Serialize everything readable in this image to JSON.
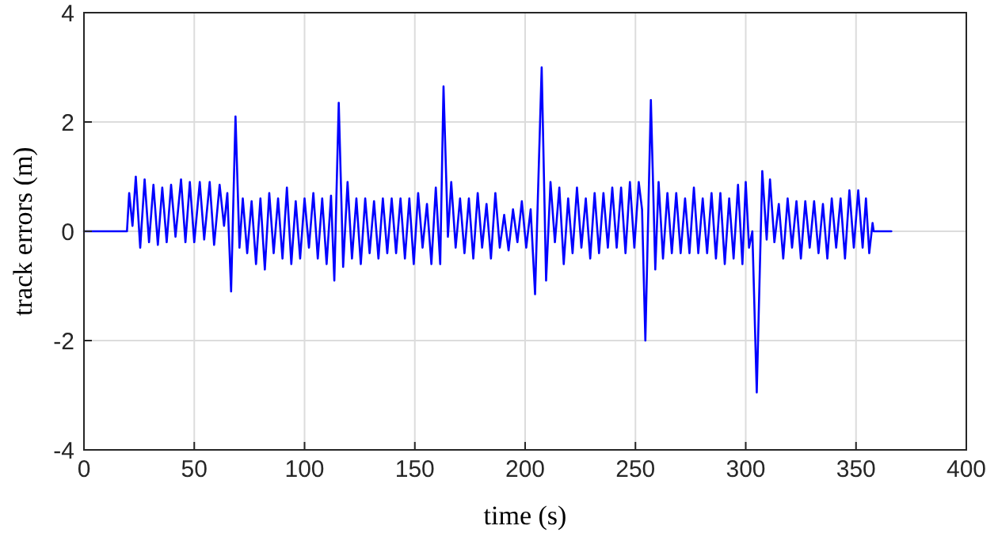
{
  "chart_data": {
    "type": "line",
    "xlabel": "time (s)",
    "ylabel": "track errors (m)",
    "xlim": [
      0,
      400
    ],
    "ylim": [
      -4,
      4
    ],
    "xticks": [
      0,
      50,
      100,
      150,
      200,
      250,
      300,
      350,
      400
    ],
    "yticks": [
      -4,
      -2,
      0,
      2,
      4
    ],
    "grid": true,
    "marker": "none",
    "line_style": "solid",
    "series": [
      {
        "color": "#0000ff",
        "x": [
          0,
          19.5,
          20.5,
          22,
          23.5,
          25.5,
          27.5,
          29.5,
          31.5,
          33.5,
          35.5,
          37.5,
          39.5,
          41.5,
          44,
          46,
          48,
          50,
          52.5,
          54.5,
          57,
          59,
          61.5,
          63.5,
          65,
          66.7,
          68.7,
          70.5,
          72,
          74,
          76,
          78,
          80,
          82,
          84,
          86,
          88,
          90,
          92,
          94,
          96,
          98,
          100,
          102,
          104,
          106,
          108,
          110,
          112,
          113.5,
          115.5,
          117.5,
          119.5,
          121.5,
          123.5,
          125.5,
          127.5,
          129.5,
          131.5,
          133.5,
          135.5,
          137.5,
          139.5,
          141.5,
          143.5,
          145.5,
          147.5,
          149.5,
          151.5,
          153.5,
          155.5,
          157.5,
          159.5,
          161.5,
          163,
          165,
          166.5,
          168.5,
          170.5,
          172.5,
          174.5,
          176.5,
          178.5,
          180.5,
          182.5,
          184.5,
          186.5,
          188.5,
          190.5,
          192.5,
          194.5,
          196.5,
          198.5,
          200.5,
          202.5,
          204.5,
          207.5,
          209.5,
          211.5,
          213.5,
          215.5,
          217.5,
          219.5,
          221.5,
          223.5,
          225.5,
          227.5,
          229.5,
          231.5,
          233.5,
          235.5,
          237.5,
          239.5,
          241.5,
          243.5,
          245.5,
          247.5,
          249.5,
          251.5,
          253,
          254.5,
          257,
          259,
          260.5,
          262.5,
          264.5,
          266.5,
          268.5,
          270.5,
          272.5,
          274.5,
          276.5,
          278.5,
          280.5,
          282.5,
          284.5,
          286.5,
          288.5,
          290.5,
          292.5,
          294.5,
          296.5,
          298.5,
          300,
          301.5,
          303,
          305,
          307.5,
          309.5,
          311,
          313,
          315,
          317,
          319,
          321,
          323,
          325,
          327,
          329,
          331,
          333,
          335,
          337,
          339,
          341,
          343,
          345,
          347,
          349,
          351,
          353,
          354.5,
          356,
          357.5,
          358,
          366
        ],
        "values": [
          0,
          0,
          0.7,
          0.1,
          1.0,
          -0.3,
          0.95,
          -0.2,
          0.85,
          -0.25,
          0.8,
          -0.2,
          0.85,
          -0.1,
          0.95,
          -0.2,
          0.9,
          -0.2,
          0.9,
          -0.15,
          0.9,
          -0.25,
          0.85,
          0.1,
          0.7,
          -1.1,
          2.1,
          -0.3,
          0.6,
          -0.4,
          0.55,
          -0.6,
          0.6,
          -0.7,
          0.7,
          -0.4,
          0.6,
          -0.5,
          0.8,
          -0.6,
          0.55,
          -0.5,
          0.6,
          -0.3,
          0.7,
          -0.5,
          0.6,
          -0.6,
          0.65,
          -0.9,
          2.35,
          -0.65,
          0.9,
          -0.5,
          0.6,
          -0.6,
          0.6,
          -0.4,
          0.55,
          -0.5,
          0.6,
          -0.4,
          0.6,
          -0.4,
          0.6,
          -0.5,
          0.6,
          -0.6,
          0.7,
          -0.3,
          0.5,
          -0.6,
          0.8,
          -0.6,
          2.65,
          -0.1,
          0.9,
          -0.3,
          0.6,
          -0.4,
          0.6,
          -0.5,
          0.7,
          -0.3,
          0.5,
          -0.5,
          0.7,
          -0.3,
          0.3,
          -0.35,
          0.4,
          -0.2,
          0.55,
          -0.3,
          0.4,
          -1.15,
          3.0,
          -0.9,
          0.9,
          -0.2,
          0.8,
          -0.6,
          0.6,
          -0.4,
          0.8,
          -0.3,
          0.6,
          -0.5,
          0.7,
          -0.4,
          0.7,
          -0.3,
          0.8,
          -0.3,
          0.8,
          -0.4,
          0.9,
          -0.3,
          0.9,
          0.4,
          -2.0,
          2.4,
          -0.7,
          0.9,
          -0.5,
          0.7,
          -0.4,
          0.7,
          -0.4,
          0.6,
          -0.4,
          0.8,
          -0.4,
          0.6,
          -0.4,
          0.7,
          -0.5,
          0.7,
          -0.6,
          0.6,
          -0.5,
          0.85,
          -0.6,
          0.9,
          -0.3,
          0,
          -2.95,
          1.1,
          -0.15,
          0.95,
          -0.2,
          0.5,
          -0.5,
          0.6,
          -0.3,
          0.55,
          -0.5,
          0.55,
          -0.3,
          0.55,
          -0.4,
          0.5,
          -0.5,
          0.6,
          -0.3,
          0.6,
          -0.5,
          0.75,
          -0.3,
          0.75,
          -0.3,
          0.6,
          -0.4,
          0.15,
          0,
          0
        ]
      }
    ]
  }
}
